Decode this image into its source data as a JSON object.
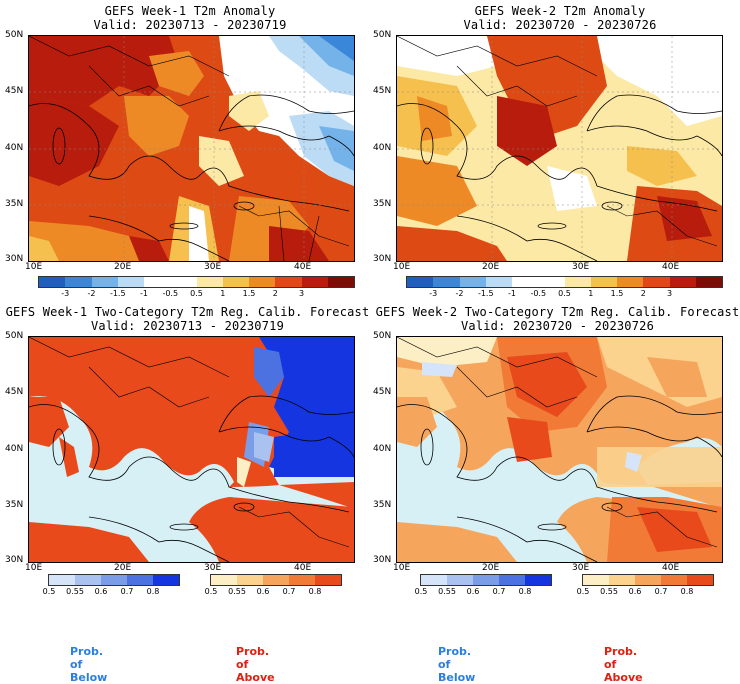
{
  "panels": [
    {
      "id": "p1",
      "title": "GEFS Week-1 T2m Anomaly",
      "valid": "Valid: 20230713 - 20230719"
    },
    {
      "id": "p2",
      "title": "GEFS Week-2 T2m Anomaly",
      "valid": "Valid: 20230720 - 20230726"
    },
    {
      "id": "p3",
      "title": "GEFS Week-1 Two-Category T2m Reg. Calib. Forecast",
      "valid": "Valid: 20230713 - 20230719"
    },
    {
      "id": "p4",
      "title": "GEFS Week-2 Two-Category T2m Reg. Calib. Forecast",
      "valid": "Valid: 20230720 - 20230726"
    }
  ],
  "lat_labels": [
    "50N",
    "45N",
    "40N",
    "35N",
    "30N"
  ],
  "lon_labels": [
    "10E",
    "20E",
    "30E",
    "40E"
  ],
  "anomaly_colorbar": {
    "ticks": [
      "-3",
      "-2",
      "-1.5",
      "-1",
      "-0.5",
      "0.5",
      "1",
      "1.5",
      "2",
      "3"
    ],
    "colors": [
      "#1f5fc0",
      "#3a86d8",
      "#74b3ea",
      "#bcdcf5",
      "#ffffff",
      "#ffffff",
      "#fde9a6",
      "#f6c04f",
      "#ee8a25",
      "#dd4a14",
      "#b81c0c",
      "#7d0c06"
    ]
  },
  "prob_colorbars": {
    "below": {
      "ticks": [
        "0.5",
        "0.55",
        "0.6",
        "0.7",
        "0.8"
      ],
      "colors": [
        "#d6e4f9",
        "#a9c2ef",
        "#7b9ce6",
        "#4b72e0",
        "#1535e0"
      ],
      "label": "Prob. of Below",
      "label_color": "#2b7fe0"
    },
    "above": {
      "ticks": [
        "0.5",
        "0.55",
        "0.6",
        "0.7",
        "0.8"
      ],
      "colors": [
        "#fdefc5",
        "#fbd28e",
        "#f6a55c",
        "#f07a36",
        "#e84a1c"
      ],
      "label": "Prob. of Above",
      "label_color": "#e02010"
    }
  }
}
